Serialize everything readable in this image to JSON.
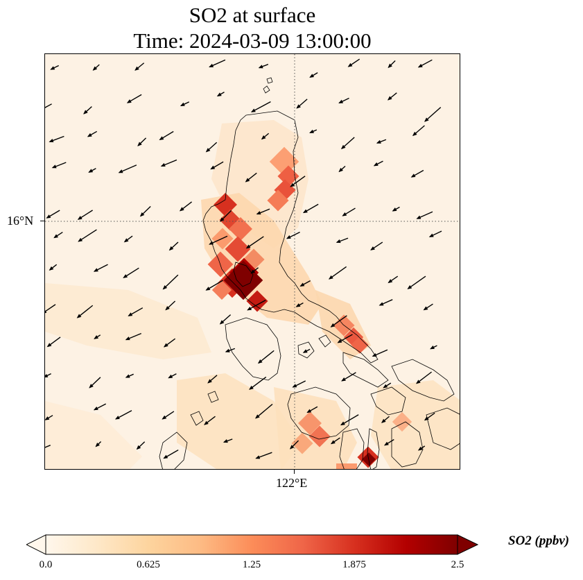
{
  "title": {
    "line1": "SO2 at surface",
    "line2": "Time: 2024-03-09 13:00:00"
  },
  "axes": {
    "lat_tick": "16°N",
    "lon_tick": "122°E"
  },
  "colorbar": {
    "label": "SO2 (ppbv)",
    "ticks": [
      "0.0",
      "0.625",
      "1.25",
      "1.875",
      "2.5"
    ],
    "min": 0.0,
    "max": 2.5,
    "extend": "both",
    "colormap": "OrRd",
    "colors": [
      "#fff7ec",
      "#fee8c8",
      "#fdd49e",
      "#fdbb84",
      "#fc8d59",
      "#ef6548",
      "#d7301f",
      "#b30000",
      "#7f0000"
    ]
  },
  "map": {
    "grid_style": "dotted",
    "coastline_color": "#000000",
    "wind_vectors": "black arrows (mostly from east-northeast)"
  }
}
